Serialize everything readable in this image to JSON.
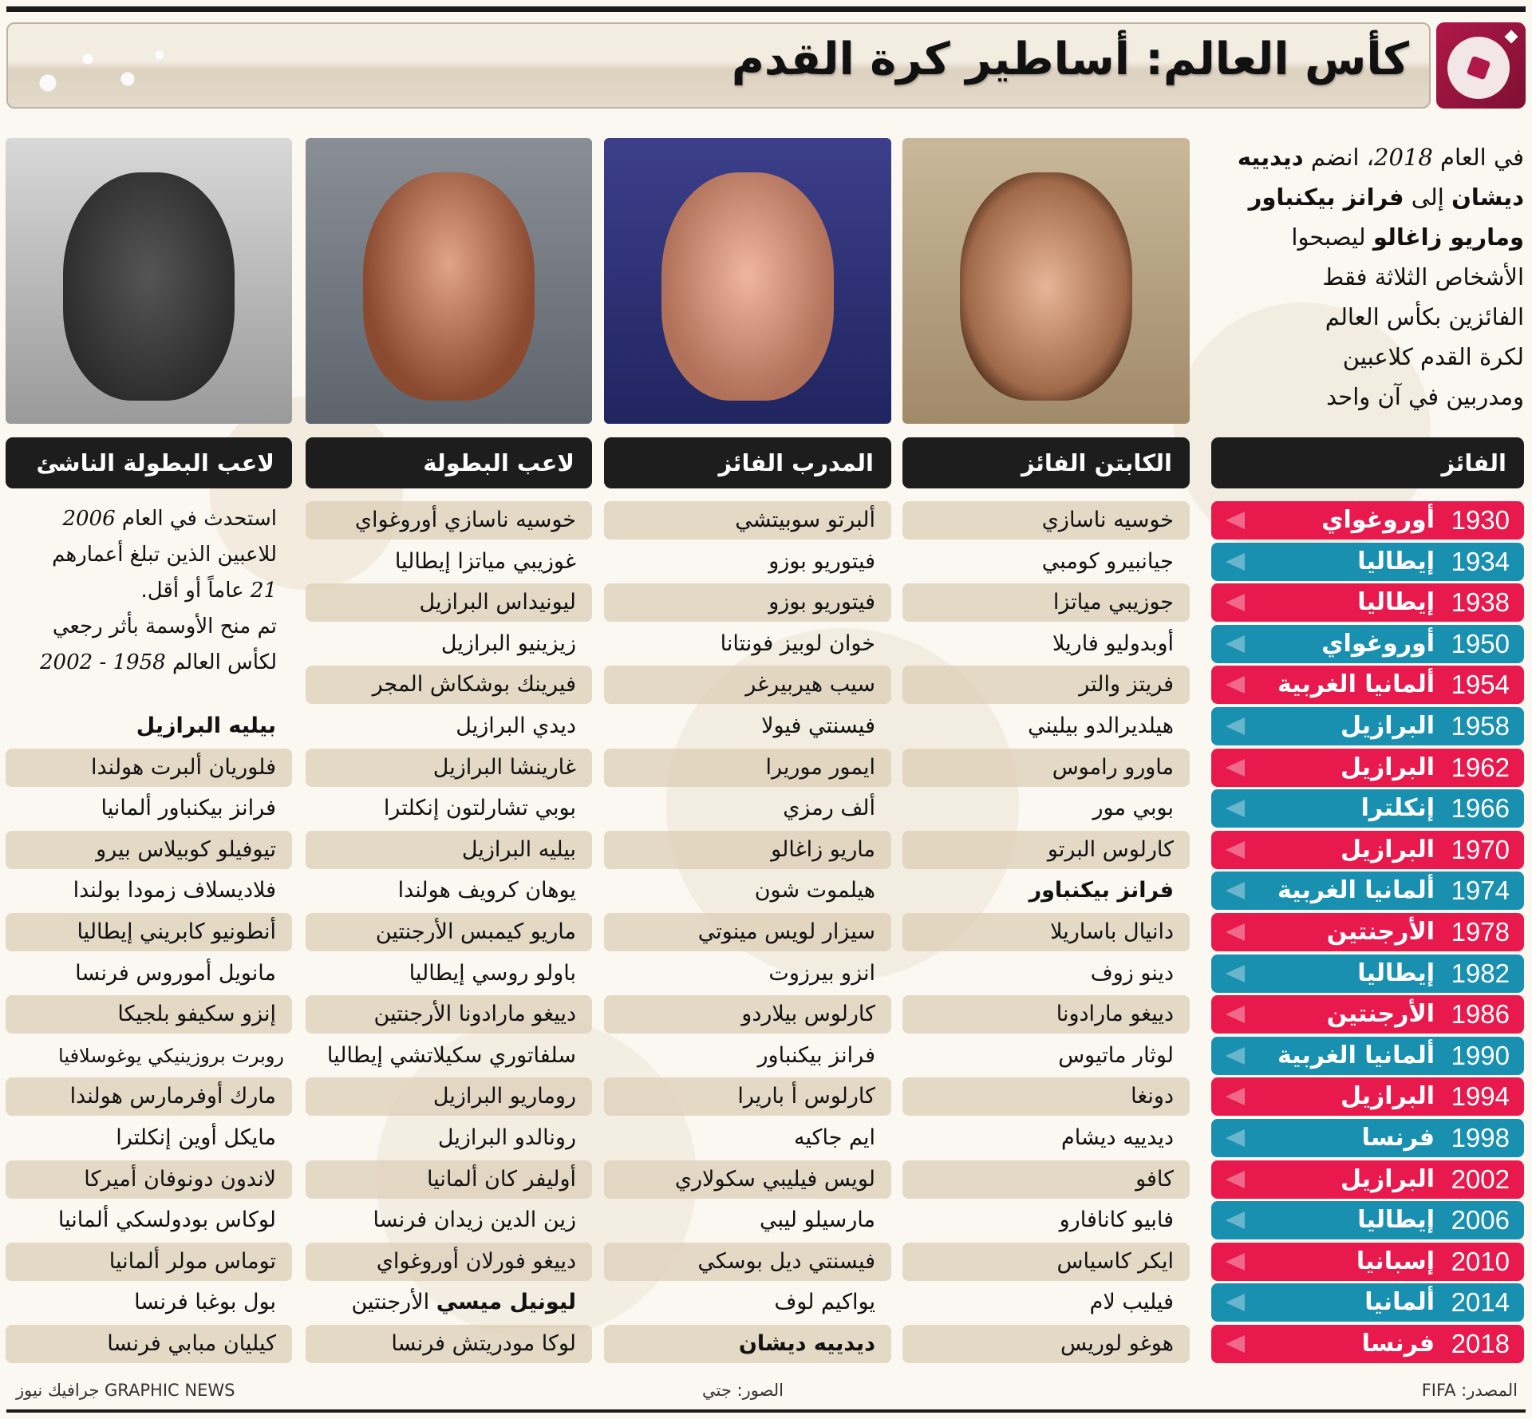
{
  "title": "كأس العالم: أساطير كرة القدم",
  "colors": {
    "winner_red": "#e8194d",
    "winner_teal": "#1a90b1",
    "header_black": "#1d1d1d",
    "row_shade": "#ded0b8",
    "logo": "#a8174a"
  },
  "logo_icon": "football-icon",
  "intro_lines": [
    [
      {
        "t": "في العام "
      },
      {
        "t": "2018",
        "i": true
      },
      {
        "t": "، انضم "
      },
      {
        "t": "ديدييه",
        "b": true
      }
    ],
    [
      {
        "t": "ديشان",
        "b": true
      },
      {
        "t": " إلى "
      },
      {
        "t": "فرانز بيكنباور",
        "b": true
      }
    ],
    [
      {
        "t": "وماريو زاغالو",
        "b": true
      },
      {
        "t": " ليصبحوا"
      }
    ],
    [
      {
        "t": "الأشخاص الثلاثة فقط"
      }
    ],
    [
      {
        "t": "الفائزين بكأس العالم"
      }
    ],
    [
      {
        "t": "لكرة القدم كلاعبين"
      }
    ],
    [
      {
        "t": "ومدربين في آن واحد"
      }
    ]
  ],
  "columns": {
    "winner": "الفائز",
    "captain": "الكابتن الفائز",
    "coach": "المدرب الفائز",
    "player": "لاعب البطولة",
    "young": "لاعب البطولة الناشئ"
  },
  "winners": [
    {
      "year": "1930",
      "country": "أوروغواي"
    },
    {
      "year": "1934",
      "country": "إيطاليا"
    },
    {
      "year": "1938",
      "country": "إيطاليا"
    },
    {
      "year": "1950",
      "country": "أوروغواي"
    },
    {
      "year": "1954",
      "country": "ألمانيا الغربية"
    },
    {
      "year": "1958",
      "country": "البرازيل"
    },
    {
      "year": "1962",
      "country": "البرازيل"
    },
    {
      "year": "1966",
      "country": "إنكلترا"
    },
    {
      "year": "1970",
      "country": "البرازيل"
    },
    {
      "year": "1974",
      "country": "ألمانيا الغربية"
    },
    {
      "year": "1978",
      "country": "الأرجنتين"
    },
    {
      "year": "1982",
      "country": "إيطاليا"
    },
    {
      "year": "1986",
      "country": "الأرجنتين"
    },
    {
      "year": "1990",
      "country": "ألمانيا الغربية"
    },
    {
      "year": "1994",
      "country": "البرازيل"
    },
    {
      "year": "1998",
      "country": "فرنسا"
    },
    {
      "year": "2002",
      "country": "البرازيل"
    },
    {
      "year": "2006",
      "country": "إيطاليا"
    },
    {
      "year": "2010",
      "country": "إسبانيا"
    },
    {
      "year": "2014",
      "country": "ألمانيا"
    },
    {
      "year": "2018",
      "country": "فرنسا"
    }
  ],
  "captains": [
    "خوسيه ناسازي",
    "جيانبيرو كومبي",
    "جوزيبي مياتزا",
    "أوبدوليو فاريلا",
    "فريتز والتر",
    "هيلديرالدو بيليني",
    "ماورو راموس",
    "بوبي مور",
    "كارلوس البرتو",
    "فرانز بيكنباور",
    "دانيال باساريلا",
    "دينو زوف",
    "دييغو مارادونا",
    "لوثار ماتيوس",
    "دونغا",
    "ديدييه ديشام",
    "كافو",
    "فابيو كانافارو",
    "ايكر كاسياس",
    "فيليب لام",
    "هوغو لوريس"
  ],
  "captains_bold": [
    9
  ],
  "coaches": [
    "ألبرتو سوبيتشي",
    "فيتوريو بوزو",
    "فيتوريو بوزو",
    "خوان لوبيز فونتانا",
    "سيب هيربيرغر",
    "فيسنتي فيولا",
    "ايمور موريرا",
    "ألف رمزي",
    "ماريو زاغالو",
    "هيلموت شون",
    "سيزار لويس مينوتي",
    "انزو بيرزوت",
    "كارلوس بيلاردو",
    "فرانز بيكنباور",
    "كارلوس أ باريرا",
    "ايم جاكيه",
    "لويس فيليبي سكولاري",
    "مارسيلو ليبي",
    "فيسنتي ديل بوسكي",
    "يواكيم لوف",
    "ديدييه ديشان"
  ],
  "coaches_bold": [
    20
  ],
  "players": [
    "خوسيه ناسازي أوروغواي",
    "غوزيبي مياتزا إيطاليا",
    "ليونيداس البرازيل",
    "زيزينيو البرازيل",
    "فيرينك بوشكاش المجر",
    "ديدي البرازيل",
    "غارينشا البرازيل",
    "بوبي تشارلتون إنكلترا",
    "بيليه البرازيل",
    "يوهان كرويف هولندا",
    "ماريو كيمبس الأرجنتين",
    "باولو روسي إيطاليا",
    "دييغو مارادونا الأرجنتين",
    "سلفاتوري سكيلاتشي إيطاليا",
    "روماريو البرازيل",
    "رونالدو البرازيل",
    "أوليفر كان ألمانيا",
    "زين الدين زيدان فرنسا",
    "دييغو فورلان أوروغواي",
    "ليونيل ميسي|الأرجنتين",
    "لوكا مودريتش فرنسا"
  ],
  "players_bold_prefix": [
    19
  ],
  "young_intro_lines": [
    [
      {
        "t": "استحدث في العام "
      },
      {
        "t": "2006",
        "i": true
      }
    ],
    [
      {
        "t": "للاعبين الذين تبلغ أعمارهم"
      }
    ],
    [
      {
        "t": "21",
        "i": true
      },
      {
        "t": " عاماً أو أقل."
      }
    ],
    [
      {
        "t": "تم منح الأوسمة بأثر رجعي"
      }
    ],
    [
      {
        "t": "لكأس العالم "
      },
      {
        "t": "1958 - 2002",
        "i": true
      }
    ]
  ],
  "young": [
    "بيليه البرازيل",
    "فلوريان ألبرت هولندا",
    "فرانز بيكنباور ألمانيا",
    "تيوفيلو كوبيلاس بيرو",
    "فلاديسلاف زمودا بولندا",
    "أنطونيو كابريني إيطاليا",
    "مانويل أموروس فرنسا",
    "إنزو سكيفو بلجيكا",
    "روبرت بروزينيكي يوغوسلافيا",
    "مارك أوفرمارس هولندا",
    "مايكل أوين إنكلترا",
    "لاندون دونوفان أميركا",
    "لوكاس بودولسكي ألمانيا",
    "توماس مولر ألمانيا",
    "بول بوغبا فرنسا",
    "كيليان مبابي فرنسا"
  ],
  "young_bold": [
    0
  ],
  "photos": {
    "young": "Pele portrait",
    "player": "Messi portrait",
    "coach": "Deschamps portrait",
    "captain": "Beckenbauer portrait"
  },
  "footer": {
    "source": "المصدر: FIFA",
    "photos": "الصور: جتي",
    "credit": "GRAPHIC NEWS جرافيك نيوز"
  }
}
